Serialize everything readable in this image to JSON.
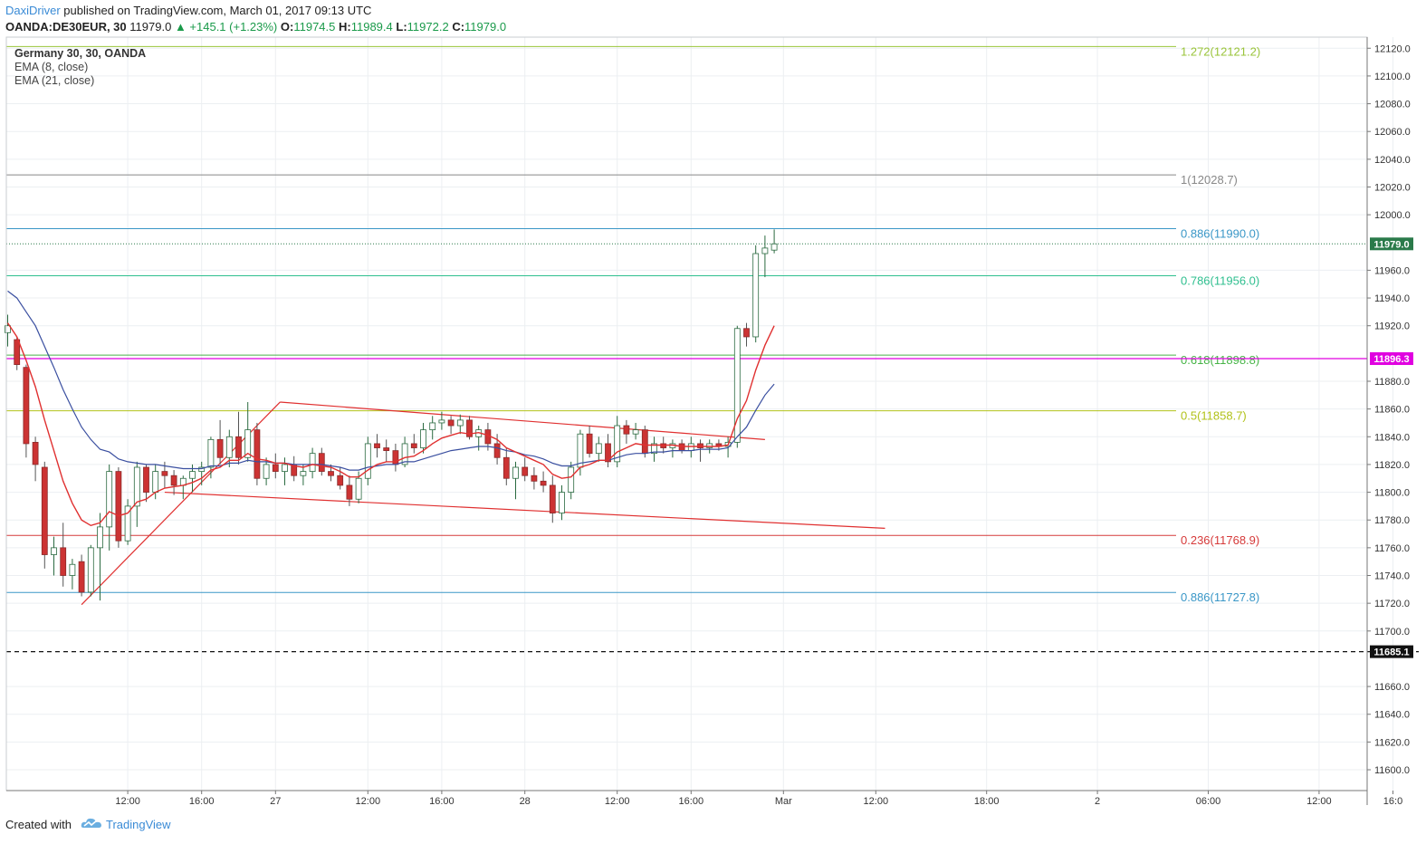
{
  "header": {
    "author": "DaxiDriver",
    "published_text": " published on TradingView.com, March 01, 2017 09:13 UTC",
    "symbol": "OANDA:DE30EUR, 30",
    "last": "11979.0",
    "change": "▲ +145.1 (+1.23%)",
    "o_label": "O:",
    "o_val": "11974.5",
    "h_label": "H:",
    "h_val": "11989.4",
    "l_label": "L:",
    "l_val": "11972.2",
    "c_label": "C:",
    "c_val": "11979.0"
  },
  "legend": {
    "title": "Germany 30, 30, OANDA",
    "ema8": "EMA (8, close)",
    "ema21": "EMA (21, close)"
  },
  "footer": {
    "created": "Created with",
    "brand": "TradingView"
  },
  "colors": {
    "up_border": "#2a7a4a",
    "down_fill": "#cc3333",
    "ema8": "#e03030",
    "ema21": "#3a4fa0",
    "fib_1272": "#9ac43a",
    "fib_1": "#888888",
    "fib_886": "#3a97c7",
    "fib_786": "#2fbf8f",
    "fib_618": "#47b347",
    "fib_5": "#b2c21a",
    "fib_236": "#d63a3a",
    "magenta": "#e000e0"
  },
  "chart_data": {
    "type": "candlestick",
    "ylim": [
      11585,
      12128
    ],
    "y_ticks": [
      12120,
      12100,
      12080,
      12060,
      12040,
      12020,
      12000,
      11960,
      11940,
      11920,
      11880,
      11860,
      11840,
      11820,
      11800,
      11780,
      11760,
      11740,
      11720,
      11700,
      11660,
      11640,
      11620,
      11600
    ],
    "y_tick_labels": [
      "12120.0",
      "12100.0",
      "12080.0",
      "12060.0",
      "12040.0",
      "12020.0",
      "12000.0",
      "11960.0",
      "11940.0",
      "11920.0",
      "11880.0",
      "11860.0",
      "11840.0",
      "11820.0",
      "11800.0",
      "11780.0",
      "11760.0",
      "11740.0",
      "11720.0",
      "11700.0",
      "11660.0",
      "11640.0",
      "11620.0",
      "11600.0"
    ],
    "x_labels": [
      {
        "label": "12:00",
        "bar": 13
      },
      {
        "label": "16:00",
        "bar": 21
      },
      {
        "label": "27",
        "bar": 29
      },
      {
        "label": "12:00",
        "bar": 39
      },
      {
        "label": "16:00",
        "bar": 47
      },
      {
        "label": "28",
        "bar": 56
      },
      {
        "label": "12:00",
        "bar": 66
      },
      {
        "label": "16:00",
        "bar": 74
      },
      {
        "label": "Mar",
        "bar": 84
      },
      {
        "label": "12:00",
        "bar": 94
      },
      {
        "label": "18:00",
        "bar": 106
      },
      {
        "label": "2",
        "bar": 118
      },
      {
        "label": "06:00",
        "bar": 130
      },
      {
        "label": "12:00",
        "bar": 142
      },
      {
        "label": "16:0",
        "bar": 150
      }
    ],
    "candles": [
      [
        11915,
        11928,
        11905,
        11920
      ],
      [
        11910,
        11912,
        11888,
        11892
      ],
      [
        11890,
        11892,
        11825,
        11835
      ],
      [
        11836,
        11840,
        11808,
        11820
      ],
      [
        11818,
        11822,
        11745,
        11755
      ],
      [
        11755,
        11768,
        11740,
        11760
      ],
      [
        11760,
        11778,
        11732,
        11740
      ],
      [
        11740,
        11752,
        11730,
        11748
      ],
      [
        11750,
        11755,
        11725,
        11728
      ],
      [
        11728,
        11762,
        11725,
        11760
      ],
      [
        11760,
        11785,
        11722,
        11775
      ],
      [
        11775,
        11820,
        11758,
        11815
      ],
      [
        11815,
        11818,
        11760,
        11765
      ],
      [
        11765,
        11795,
        11762,
        11790
      ],
      [
        11790,
        11822,
        11775,
        11818
      ],
      [
        11818,
        11820,
        11793,
        11800
      ],
      [
        11800,
        11820,
        11795,
        11815
      ],
      [
        11815,
        11822,
        11803,
        11812
      ],
      [
        11812,
        11816,
        11798,
        11805
      ],
      [
        11805,
        11812,
        11795,
        11810
      ],
      [
        11810,
        11820,
        11800,
        11815
      ],
      [
        11815,
        11822,
        11805,
        11818
      ],
      [
        11818,
        11840,
        11810,
        11838
      ],
      [
        11838,
        11852,
        11820,
        11825
      ],
      [
        11825,
        11845,
        11818,
        11840
      ],
      [
        11840,
        11858,
        11820,
        11825
      ],
      [
        11825,
        11865,
        11822,
        11845
      ],
      [
        11845,
        11850,
        11805,
        11810
      ],
      [
        11810,
        11825,
        11805,
        11820
      ],
      [
        11820,
        11828,
        11810,
        11815
      ],
      [
        11815,
        11825,
        11805,
        11820
      ],
      [
        11820,
        11826,
        11808,
        11812
      ],
      [
        11812,
        11820,
        11805,
        11815
      ],
      [
        11815,
        11832,
        11810,
        11828
      ],
      [
        11828,
        11832,
        11812,
        11815
      ],
      [
        11815,
        11820,
        11808,
        11812
      ],
      [
        11812,
        11818,
        11802,
        11805
      ],
      [
        11805,
        11812,
        11790,
        11795
      ],
      [
        11795,
        11815,
        11792,
        11810
      ],
      [
        11810,
        11840,
        11805,
        11835
      ],
      [
        11835,
        11842,
        11825,
        11832
      ],
      [
        11832,
        11838,
        11822,
        11830
      ],
      [
        11830,
        11835,
        11815,
        11820
      ],
      [
        11820,
        11840,
        11818,
        11835
      ],
      [
        11835,
        11842,
        11828,
        11832
      ],
      [
        11832,
        11850,
        11828,
        11845
      ],
      [
        11845,
        11855,
        11838,
        11850
      ],
      [
        11850,
        11858,
        11845,
        11852
      ],
      [
        11852,
        11855,
        11842,
        11848
      ],
      [
        11848,
        11856,
        11842,
        11852
      ],
      [
        11852,
        11855,
        11838,
        11840
      ],
      [
        11840,
        11848,
        11830,
        11845
      ],
      [
        11845,
        11850,
        11830,
        11835
      ],
      [
        11835,
        11842,
        11820,
        11825
      ],
      [
        11825,
        11832,
        11805,
        11810
      ],
      [
        11810,
        11822,
        11795,
        11818
      ],
      [
        11818,
        11825,
        11808,
        11812
      ],
      [
        11812,
        11818,
        11802,
        11808
      ],
      [
        11808,
        11815,
        11800,
        11805
      ],
      [
        11805,
        11812,
        11778,
        11785
      ],
      [
        11785,
        11805,
        11780,
        11800
      ],
      [
        11800,
        11822,
        11795,
        11818
      ],
      [
        11818,
        11845,
        11812,
        11842
      ],
      [
        11842,
        11848,
        11825,
        11828
      ],
      [
        11828,
        11840,
        11822,
        11835
      ],
      [
        11835,
        11842,
        11818,
        11822
      ],
      [
        11822,
        11855,
        11818,
        11848
      ],
      [
        11848,
        11852,
        11835,
        11842
      ],
      [
        11842,
        11850,
        11838,
        11845
      ],
      [
        11845,
        11848,
        11825,
        11828
      ],
      [
        11828,
        11840,
        11822,
        11835
      ],
      [
        11835,
        11840,
        11828,
        11832
      ],
      [
        11832,
        11838,
        11825,
        11835
      ],
      [
        11835,
        11838,
        11828,
        11830
      ],
      [
        11830,
        11840,
        11825,
        11835
      ],
      [
        11835,
        11838,
        11822,
        11832
      ],
      [
        11832,
        11838,
        11828,
        11835
      ],
      [
        11835,
        11838,
        11830,
        11833
      ],
      [
        11833,
        11840,
        11825,
        11836
      ],
      [
        11836,
        11920,
        11832,
        11918
      ],
      [
        11918,
        11922,
        11905,
        11912
      ],
      [
        11912,
        11978,
        11908,
        11972
      ],
      [
        11972,
        11985,
        11955,
        11976
      ],
      [
        11974.5,
        11989.4,
        11972.2,
        11979.0
      ]
    ],
    "ema8": [
      11922,
      11912,
      11895,
      11876,
      11852,
      11830,
      11808,
      11792,
      11780,
      11776,
      11778,
      11786,
      11783,
      11785,
      11793,
      11795,
      11800,
      11803,
      11804,
      11805,
      11807,
      11810,
      11816,
      11818,
      11823,
      11823,
      11828,
      11824,
      11823,
      11821,
      11821,
      11819,
      11818,
      11820,
      11819,
      11818,
      11815,
      11811,
      11811,
      11816,
      11820,
      11822,
      11822,
      11825,
      11826,
      11830,
      11835,
      11839,
      11841,
      11843,
      11842,
      11843,
      11841,
      11838,
      11832,
      11829,
      11826,
      11823,
      11820,
      11813,
      11810,
      11811,
      11818,
      11820,
      11823,
      11823,
      11829,
      11832,
      11835,
      11834,
      11834,
      11834,
      11834,
      11833,
      11833,
      11833,
      11833,
      11833,
      11834,
      11853,
      11866,
      11888,
      11906,
      11920
    ],
    "ema21": [
      11945,
      11940,
      11930,
      11920,
      11905,
      11890,
      11874,
      11860,
      11847,
      11838,
      11831,
      11829,
      11824,
      11822,
      11821,
      11820,
      11820,
      11819,
      11818,
      11817,
      11817,
      11817,
      11819,
      11819,
      11821,
      11821,
      11823,
      11822,
      11822,
      11821,
      11821,
      11820,
      11820,
      11820,
      11820,
      11819,
      11818,
      11816,
      11816,
      11818,
      11819,
      11820,
      11820,
      11822,
      11822,
      11824,
      11826,
      11828,
      11830,
      11831,
      11832,
      11833,
      11833,
      11832,
      11830,
      11829,
      11827,
      11826,
      11824,
      11821,
      11819,
      11819,
      11821,
      11822,
      11823,
      11823,
      11825,
      11827,
      11828,
      11828,
      11829,
      11829,
      11830,
      11830,
      11830,
      11831,
      11831,
      11831,
      11832,
      11840,
      11847,
      11859,
      11870,
      11878
    ],
    "fib_levels": [
      {
        "label": "1.272(12121.2)",
        "value": 12121.2,
        "color": "#9ac43a"
      },
      {
        "label": "1(12028.7)",
        "value": 12028.7,
        "color": "#888888"
      },
      {
        "label": "0.886(11990.0)",
        "value": 11990.0,
        "color": "#3a97c7"
      },
      {
        "label": "0.786(11956.0)",
        "value": 11956.0,
        "color": "#2fbf8f"
      },
      {
        "label": "0.618(11898.8)",
        "value": 11898.8,
        "color": "#47b347"
      },
      {
        "label": "0.5(11858.7)",
        "value": 11858.7,
        "color": "#b2c21a"
      },
      {
        "label": "0.236(11768.9)",
        "value": 11768.9,
        "color": "#d63a3a"
      },
      {
        "label": "0.886(11727.8)",
        "value": 11727.8,
        "color": "#3a97c7"
      }
    ],
    "trend_lines": [
      {
        "from": [
          8,
          11719
        ],
        "to": [
          29.5,
          11865
        ]
      },
      {
        "from": [
          29.5,
          11865
        ],
        "to": [
          82,
          11838
        ]
      },
      {
        "from": [
          17,
          11800
        ],
        "to": [
          95,
          11774
        ]
      }
    ],
    "dotted_last": 11979.0,
    "magenta_level": 11896.3,
    "dashed_level": 11685.1,
    "price_tags": [
      {
        "label": "11979.0",
        "value": 11979.0,
        "bg": "#2a7a4a"
      },
      {
        "label": "11896.3",
        "value": 11896.3,
        "bg": "#e000e0"
      },
      {
        "label": "11685.1",
        "value": 11685.1,
        "bg": "#111111"
      }
    ]
  }
}
